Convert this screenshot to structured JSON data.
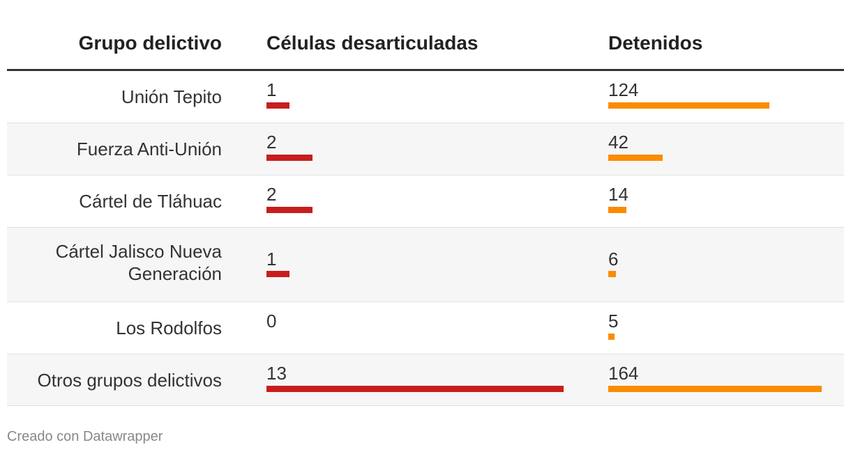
{
  "table": {
    "headers": {
      "group": "Grupo delictivo",
      "cells": "Células desarticuladas",
      "detained": "Detenidos"
    },
    "rows": [
      {
        "group": "Unión Tepito",
        "cells": "1",
        "detained": "124"
      },
      {
        "group": "Fuerza Anti-Unión",
        "cells": "2",
        "detained": "42"
      },
      {
        "group": "Cártel de Tláhuac",
        "cells": "2",
        "detained": "14"
      },
      {
        "group": "Cártel Jalisco Nueva Generación",
        "cells": "1",
        "detained": "6"
      },
      {
        "group": "Los Rodolfos",
        "cells": "0",
        "detained": "5"
      },
      {
        "group": "Otros grupos delictivos",
        "cells": "13",
        "detained": "164"
      }
    ]
  },
  "chart_data": {
    "type": "table",
    "columns": [
      "Grupo delictivo",
      "Células desarticuladas",
      "Detenidos"
    ],
    "categories": [
      "Unión Tepito",
      "Fuerza Anti-Unión",
      "Cártel de Tláhuac",
      "Cártel Jalisco Nueva Generación",
      "Los Rodolfos",
      "Otros grupos delictivos"
    ],
    "series": [
      {
        "name": "Células desarticuladas",
        "values": [
          1,
          2,
          2,
          1,
          0,
          13
        ],
        "color": "#c71e1d"
      },
      {
        "name": "Detenidos",
        "values": [
          124,
          42,
          14,
          6,
          5,
          164
        ],
        "color": "#fa8c00"
      }
    ]
  },
  "footer": {
    "credit": "Creado con Datawrapper"
  }
}
